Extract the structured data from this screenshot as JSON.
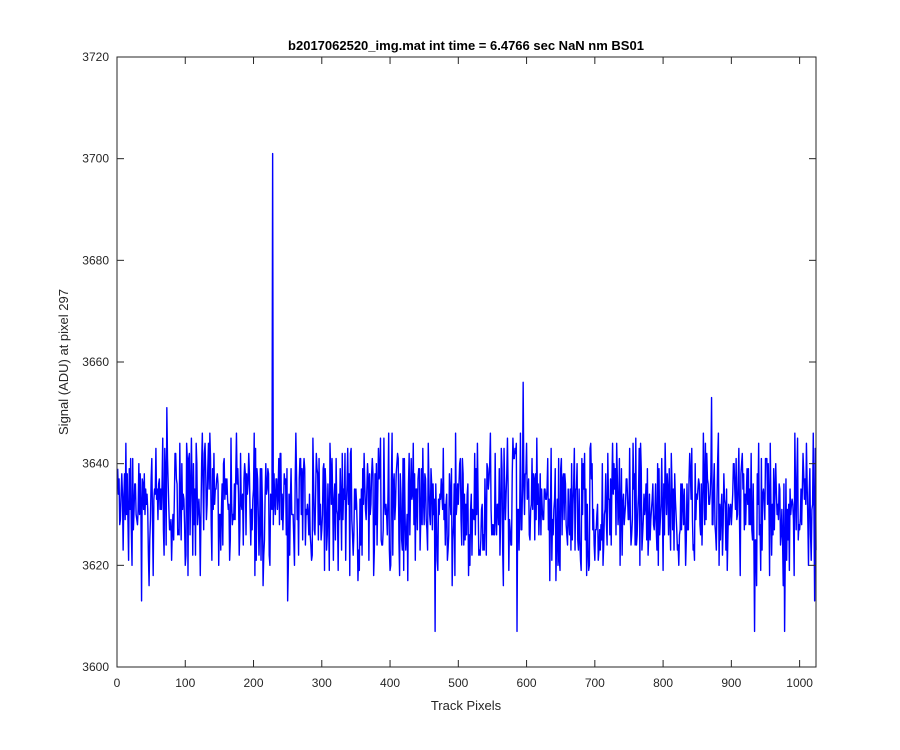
{
  "chart_data": {
    "type": "line",
    "title": "b2017062520_img.mat int time = 6.4766 sec  NaN nm BS01",
    "xlabel": "Track Pixels",
    "ylabel": "Signal (ADU) at pixel 297",
    "xlim": [
      0,
      1024
    ],
    "ylim": [
      3600,
      3720
    ],
    "xticks": [
      0,
      100,
      200,
      300,
      400,
      500,
      600,
      700,
      800,
      900,
      1000
    ],
    "yticks": [
      3600,
      3620,
      3640,
      3660,
      3680,
      3700,
      3720
    ],
    "grid": false,
    "line_color": "#0000ff",
    "series": [
      {
        "x_start": 1,
        "x_step": 1,
        "baseline_mean": 3632,
        "noise_range": [
          3607,
          3656
        ],
        "spikes": [
          {
            "x": 228,
            "y": 3701
          },
          {
            "x": 595,
            "y": 3656
          },
          {
            "x": 871,
            "y": 3653
          },
          {
            "x": 73,
            "y": 3651
          },
          {
            "x": 466,
            "y": 3607
          },
          {
            "x": 586,
            "y": 3607
          },
          {
            "x": 934,
            "y": 3607
          },
          {
            "x": 978,
            "y": 3607
          },
          {
            "x": 36,
            "y": 3613
          },
          {
            "x": 250,
            "y": 3613
          },
          {
            "x": 1022,
            "y": 3613
          }
        ]
      }
    ]
  }
}
